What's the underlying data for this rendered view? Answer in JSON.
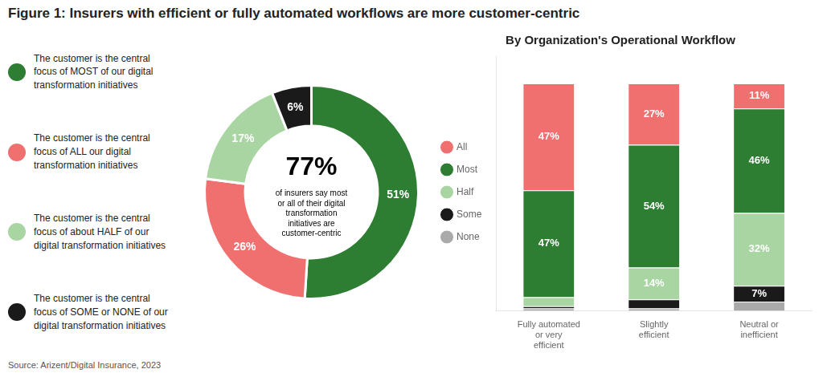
{
  "chart_data": [
    {
      "type": "doughnut",
      "title": "Figure 1: Insurers with efficient or fully automated workflows are more customer-centric",
      "subtitle": "Source: Arizent/Digital Insurance, 2023",
      "categories": [
        "The customer is the central\nfocus of MOST of our digital\ntransformation initiatives",
        "The customer is the central\nfocus of ALL our digital\ntransformation initiatives",
        "The customer is the central\nfocus of about HALF of our\ndigital transformation initiatives",
        "The customer is the central\nfocus of SOME or NONE of our\ndigital transformation initiatives"
      ],
      "values": [
        51,
        26,
        17,
        6
      ],
      "value_labels": [
        "51%",
        "26%",
        "17%",
        "6%"
      ],
      "colors": [
        "#2d7d32",
        "#f07070",
        "#a8d5a2",
        "#1a1a1a"
      ],
      "data_labels": true,
      "legend": "left",
      "annotations": [
        "77%",
        "of insurers say most\nor all of their digital\ntransformation\ninitiatives are\ncustomer-centric"
      ]
    },
    {
      "type": "bar",
      "title": "By Organization's Operational Workflow",
      "categories": [
        "Fully automated\nor very\nefficient",
        "Slightly\nefficient",
        "Neutral or\ninefficient"
      ],
      "series": [
        {
          "name": "All",
          "color": "#f07070",
          "values": [
            47,
            27,
            11
          ],
          "value_labels": [
            "47%",
            "27%",
            "11%"
          ]
        },
        {
          "name": "Most",
          "color": "#2d7d32",
          "values": [
            47,
            54,
            46
          ],
          "value_labels": [
            "47%",
            "54%",
            "46%"
          ]
        },
        {
          "name": "Half",
          "color": "#a8d5a2",
          "values": [
            4,
            14,
            32
          ],
          "value_labels": [
            null,
            "14%",
            "32%"
          ]
        },
        {
          "name": "Some",
          "color": "#1a1a1a",
          "values": [
            1,
            4,
            7
          ],
          "value_labels": [
            null,
            null,
            "7%"
          ]
        },
        {
          "name": "None",
          "color": "#aaaaaa",
          "values": [
            1,
            1,
            4
          ],
          "value_labels": [
            null,
            null,
            null
          ]
        }
      ],
      "stacked": true,
      "data_labels": true,
      "legend": "left",
      "ylim": [
        0,
        112
      ],
      "yticks": [],
      "tick_labels": "x",
      "grid": false
    }
  ]
}
